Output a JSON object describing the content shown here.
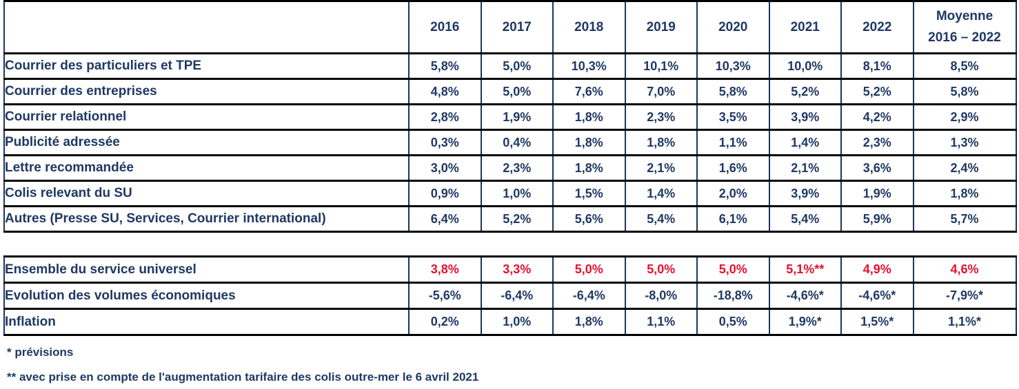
{
  "colors": {
    "text_navy": "#1F3864",
    "text_red": "#E8112D",
    "border_black": "#000000",
    "border_navy": "#17375E"
  },
  "header": {
    "years": [
      "2016",
      "2017",
      "2018",
      "2019",
      "2020",
      "2021",
      "2022"
    ],
    "moyenne_line1": "Moyenne",
    "moyenne_line2": "2016 – 2022"
  },
  "table1": {
    "rows": [
      {
        "label": "Courrier des particuliers et TPE",
        "values": [
          "5,8%",
          "5,0%",
          "10,3%",
          "10,1%",
          "10,3%",
          "10,0%",
          "8,1%",
          "8,5%"
        ]
      },
      {
        "label": "Courrier des entreprises",
        "values": [
          "4,8%",
          "5,0%",
          "7,6%",
          "7,0%",
          "5,8%",
          "5,2%",
          "5,2%",
          "5,8%"
        ]
      },
      {
        "label": "Courrier relationnel",
        "values": [
          "2,8%",
          "1,9%",
          "1,8%",
          "2,3%",
          "3,5%",
          "3,9%",
          "4,2%",
          "2,9%"
        ]
      },
      {
        "label": "Publicité adressée",
        "values": [
          "0,3%",
          "0,4%",
          "1,8%",
          "1,8%",
          "1,1%",
          "1,4%",
          "2,3%",
          "1,3%"
        ]
      },
      {
        "label": "Lettre recommandée",
        "values": [
          "3,0%",
          "2,3%",
          "1,8%",
          "2,1%",
          "1,6%",
          "2,1%",
          "3,6%",
          "2,4%"
        ]
      },
      {
        "label": "Colis relevant du SU",
        "values": [
          "0,9%",
          "1,0%",
          "1,5%",
          "1,4%",
          "2,0%",
          "3,9%",
          "1,9%",
          "1,8%"
        ]
      },
      {
        "label": "Autres (Presse SU, Services, Courrier international)",
        "values": [
          "6,4%",
          "5,2%",
          "5,6%",
          "5,4%",
          "6,1%",
          "5,4%",
          "5,9%",
          "5,7%"
        ]
      }
    ]
  },
  "table2": {
    "rows": [
      {
        "label": "Ensemble du service universel",
        "highlight": "red",
        "values": [
          "3,8%",
          "3,3%",
          "5,0%",
          "5,0%",
          "5,0%",
          "5,1%**",
          "4,9%",
          "4,6%"
        ]
      },
      {
        "label": "Evolution des volumes économiques",
        "highlight": "none",
        "values": [
          "-5,6%",
          "-6,4%",
          "-6,4%",
          "-8,0%",
          "-18,8%",
          "-4,6%*",
          "-4,6%*",
          "-7,9%*"
        ]
      },
      {
        "label": "Inflation",
        "highlight": "none",
        "values": [
          "0,2%",
          "1,0%",
          "1,8%",
          "1,1%",
          "0,5%",
          "1,9%*",
          "1,5%*",
          "1,1%*"
        ]
      }
    ]
  },
  "footnotes": [
    "* prévisions",
    "** avec prise en compte de l'augmentation tarifaire des colis outre-mer le 6 avril 2021"
  ]
}
